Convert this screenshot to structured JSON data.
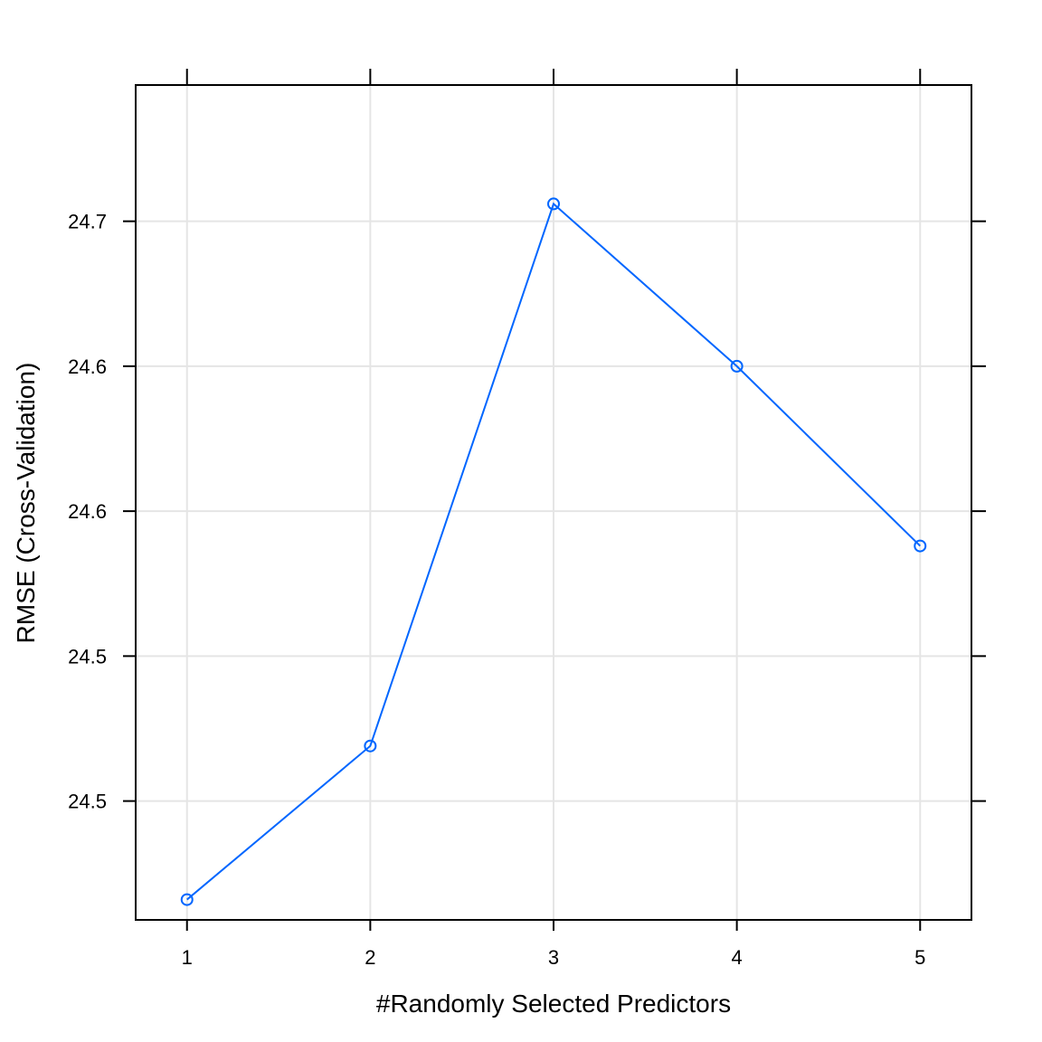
{
  "chart_data": {
    "type": "line",
    "xlabel": "#Randomly Selected Predictors",
    "ylabel": "RMSE (Cross-Validation)",
    "x": [
      1,
      2,
      3,
      4,
      5
    ],
    "series": [
      {
        "values": [
          24.441,
          24.494,
          24.681,
          24.625,
          24.563
        ]
      }
    ],
    "x_ticks": [
      1,
      2,
      3,
      4,
      5
    ],
    "x_tick_labels": [
      "1",
      "2",
      "3",
      "4",
      "5"
    ],
    "y_ticks": [
      24.475,
      24.525,
      24.575,
      24.625,
      24.675
    ],
    "y_tick_labels": [
      "24.5",
      "24.5",
      "24.6",
      "24.6",
      "24.7"
    ],
    "xlim": [
      0.72,
      5.28
    ],
    "ylim": [
      24.434,
      24.722
    ],
    "grid": true,
    "marker": "open-circle",
    "line_color": "#0066ff"
  }
}
